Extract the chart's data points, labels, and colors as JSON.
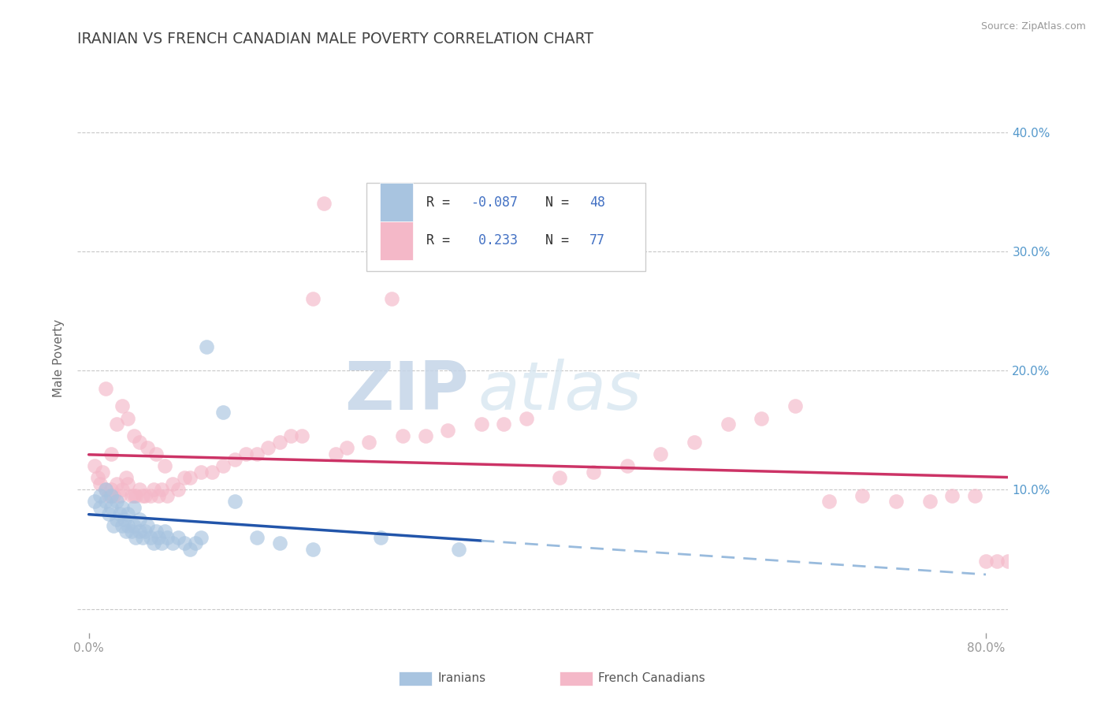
{
  "title": "IRANIAN VS FRENCH CANADIAN MALE POVERTY CORRELATION CHART",
  "source": "Source: ZipAtlas.com",
  "ylabel": "Male Poverty",
  "xlim": [
    -0.01,
    0.82
  ],
  "ylim": [
    -0.02,
    0.44
  ],
  "xtick_left": 0.0,
  "xtick_right": 0.8,
  "yticks": [
    0.0,
    0.1,
    0.2,
    0.3,
    0.4
  ],
  "right_ytick_labels": [
    "10.0%",
    "20.0%",
    "30.0%",
    "40.0%"
  ],
  "right_ytick_vals": [
    0.1,
    0.2,
    0.3,
    0.4
  ],
  "iranian_color": "#a8c4e0",
  "french_color": "#f4b8c8",
  "iranian_line_color": "#2255aa",
  "french_line_color": "#cc3366",
  "iranian_dash_color": "#99bbdd",
  "iranian_R": -0.087,
  "iranian_N": 48,
  "french_R": 0.233,
  "french_N": 77,
  "legend_iranian_label": "Iranians",
  "legend_french_label": "French Canadians",
  "watermark_zip": "ZIP",
  "watermark_atlas": "atlas",
  "background_color": "#ffffff",
  "grid_color": "#c8c8c8",
  "title_color": "#444444",
  "axis_label_color": "#666666",
  "tick_color": "#999999",
  "right_tick_color": "#5599cc",
  "bottom_tick_color": "#5599cc",
  "iranians_x": [
    0.005,
    0.01,
    0.01,
    0.015,
    0.015,
    0.018,
    0.02,
    0.02,
    0.022,
    0.025,
    0.025,
    0.028,
    0.03,
    0.03,
    0.032,
    0.033,
    0.035,
    0.035,
    0.038,
    0.04,
    0.04,
    0.042,
    0.045,
    0.045,
    0.048,
    0.05,
    0.052,
    0.055,
    0.058,
    0.06,
    0.062,
    0.065,
    0.068,
    0.07,
    0.075,
    0.08,
    0.085,
    0.09,
    0.095,
    0.1,
    0.105,
    0.12,
    0.13,
    0.15,
    0.17,
    0.2,
    0.26,
    0.33
  ],
  "iranians_y": [
    0.09,
    0.085,
    0.095,
    0.09,
    0.1,
    0.08,
    0.085,
    0.095,
    0.07,
    0.075,
    0.09,
    0.08,
    0.07,
    0.085,
    0.075,
    0.065,
    0.07,
    0.08,
    0.065,
    0.07,
    0.085,
    0.06,
    0.065,
    0.075,
    0.06,
    0.065,
    0.07,
    0.06,
    0.055,
    0.065,
    0.06,
    0.055,
    0.065,
    0.06,
    0.055,
    0.06,
    0.055,
    0.05,
    0.055,
    0.06,
    0.22,
    0.165,
    0.09,
    0.06,
    0.055,
    0.05,
    0.06,
    0.05
  ],
  "french_x": [
    0.005,
    0.008,
    0.01,
    0.012,
    0.015,
    0.015,
    0.018,
    0.02,
    0.02,
    0.022,
    0.025,
    0.025,
    0.028,
    0.03,
    0.03,
    0.033,
    0.035,
    0.035,
    0.038,
    0.04,
    0.04,
    0.042,
    0.045,
    0.045,
    0.048,
    0.05,
    0.052,
    0.055,
    0.058,
    0.06,
    0.062,
    0.065,
    0.068,
    0.07,
    0.075,
    0.08,
    0.085,
    0.09,
    0.1,
    0.11,
    0.12,
    0.13,
    0.14,
    0.15,
    0.16,
    0.17,
    0.18,
    0.19,
    0.2,
    0.21,
    0.22,
    0.23,
    0.25,
    0.27,
    0.28,
    0.3,
    0.32,
    0.35,
    0.37,
    0.39,
    0.42,
    0.45,
    0.48,
    0.51,
    0.54,
    0.57,
    0.6,
    0.63,
    0.66,
    0.69,
    0.72,
    0.75,
    0.77,
    0.79,
    0.8,
    0.81,
    0.82
  ],
  "french_y": [
    0.12,
    0.11,
    0.105,
    0.115,
    0.1,
    0.185,
    0.095,
    0.1,
    0.13,
    0.095,
    0.105,
    0.155,
    0.095,
    0.1,
    0.17,
    0.11,
    0.105,
    0.16,
    0.095,
    0.095,
    0.145,
    0.095,
    0.1,
    0.14,
    0.095,
    0.095,
    0.135,
    0.095,
    0.1,
    0.13,
    0.095,
    0.1,
    0.12,
    0.095,
    0.105,
    0.1,
    0.11,
    0.11,
    0.115,
    0.115,
    0.12,
    0.125,
    0.13,
    0.13,
    0.135,
    0.14,
    0.145,
    0.145,
    0.26,
    0.34,
    0.13,
    0.135,
    0.14,
    0.26,
    0.145,
    0.145,
    0.15,
    0.155,
    0.155,
    0.16,
    0.11,
    0.115,
    0.12,
    0.13,
    0.14,
    0.155,
    0.16,
    0.17,
    0.09,
    0.095,
    0.09,
    0.09,
    0.095,
    0.095,
    0.04,
    0.04,
    0.04
  ]
}
